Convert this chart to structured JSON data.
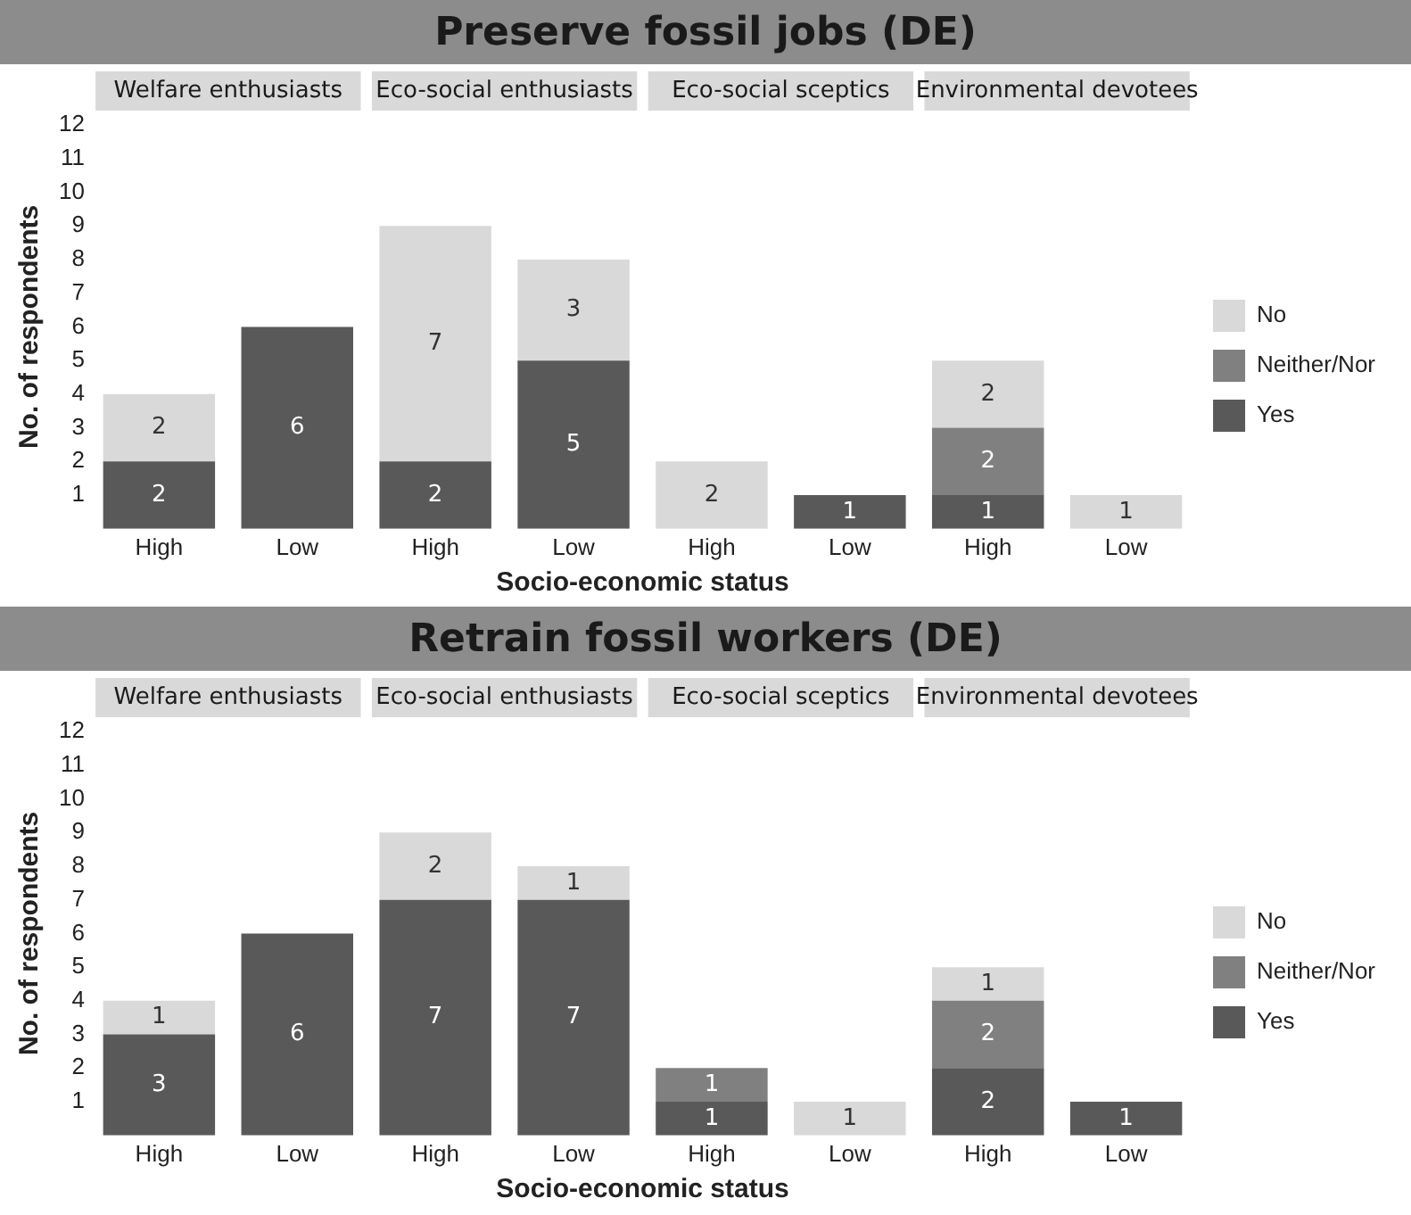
{
  "chart_data": [
    {
      "type": "bar",
      "title": "Preserve fossil jobs (DE)",
      "xlabel": "Socio-economic status",
      "ylabel": "No. of respondents",
      "categories": [
        "High",
        "Low",
        "High",
        "Low",
        "High",
        "Low",
        "High",
        "Low"
      ],
      "stacked": true,
      "data_labels": true,
      "legend": "right",
      "grid": false,
      "ylim": [
        0,
        12
      ],
      "yticks": [
        1,
        2,
        3,
        4,
        5,
        6,
        7,
        8,
        9,
        10,
        11,
        12
      ],
      "annotations": [
        "Welfare enthusiasts",
        "Eco-social enthusiasts",
        "Eco-social sceptics",
        "Environmental devotees"
      ],
      "series": [
        {
          "name": "Yes",
          "color": "#595959",
          "values": [
            2,
            6,
            2,
            5,
            null,
            1,
            1,
            null
          ]
        },
        {
          "name": "Neither/Nor",
          "color": "#808080",
          "values": [
            null,
            null,
            null,
            null,
            null,
            null,
            2,
            null
          ]
        },
        {
          "name": "No",
          "color": "#d9d9d9",
          "values": [
            2,
            null,
            7,
            3,
            2,
            null,
            2,
            1
          ]
        }
      ]
    },
    {
      "type": "bar",
      "title": "Retrain fossil workers (DE)",
      "xlabel": "Socio-economic status",
      "ylabel": "No. of respondents",
      "categories": [
        "High",
        "Low",
        "High",
        "Low",
        "High",
        "Low",
        "High",
        "Low"
      ],
      "stacked": true,
      "data_labels": true,
      "legend": "right",
      "grid": false,
      "ylim": [
        0,
        12
      ],
      "yticks": [
        1,
        2,
        3,
        4,
        5,
        6,
        7,
        8,
        9,
        10,
        11,
        12
      ],
      "annotations": [
        "Welfare enthusiasts",
        "Eco-social enthusiasts",
        "Eco-social sceptics",
        "Environmental devotees"
      ],
      "series": [
        {
          "name": "Yes",
          "color": "#595959",
          "values": [
            3,
            6,
            7,
            7,
            1,
            null,
            2,
            1
          ]
        },
        {
          "name": "Neither/Nor",
          "color": "#808080",
          "values": [
            null,
            null,
            null,
            null,
            1,
            null,
            2,
            null
          ]
        },
        {
          "name": "No",
          "color": "#d9d9d9",
          "values": [
            1,
            null,
            2,
            1,
            null,
            1,
            1,
            null
          ]
        }
      ]
    }
  ]
}
